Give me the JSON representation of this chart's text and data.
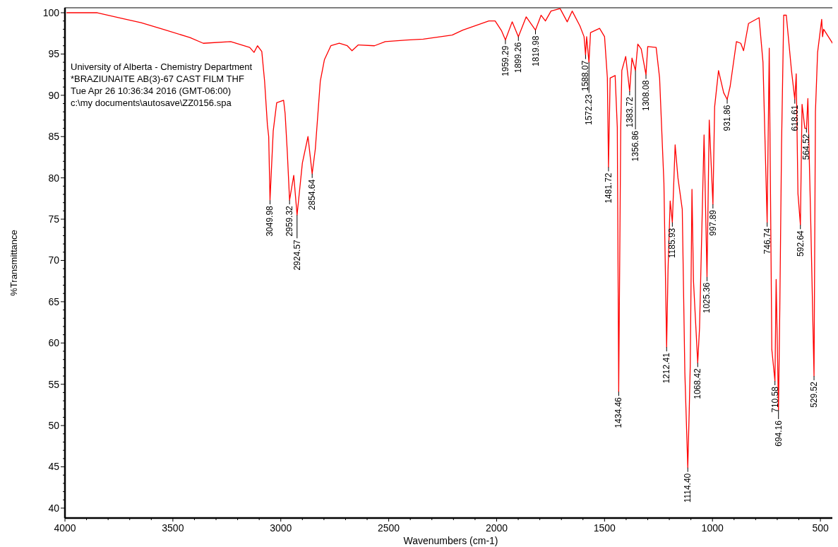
{
  "chart_data": {
    "type": "line",
    "xlabel": "Wavenumbers (cm-1)",
    "ylabel": "%Transmittance",
    "xlim": [
      4000,
      425
    ],
    "ylim": [
      38.8,
      100.6
    ],
    "xticks": [
      4000,
      {
        "value": 3900,
        "label": null
      },
      {
        "value": 3800,
        "label": null
      },
      {
        "value": 3700,
        "label": null
      },
      {
        "value": 3600,
        "label": null
      },
      3500,
      {
        "value": 3400,
        "label": null
      },
      {
        "value": 3300,
        "label": null
      },
      {
        "value": 3200,
        "label": null
      },
      {
        "value": 3100,
        "label": null
      },
      3000,
      {
        "value": 2900,
        "label": null
      },
      {
        "value": 2800,
        "label": null
      },
      {
        "value": 2700,
        "label": null
      },
      {
        "value": 2600,
        "label": null
      },
      2500,
      {
        "value": 2400,
        "label": null
      },
      {
        "value": 2300,
        "label": null
      },
      {
        "value": 2200,
        "label": null
      },
      {
        "value": 2100,
        "label": null
      },
      2000,
      {
        "value": 1900,
        "label": null
      },
      {
        "value": 1800,
        "label": null
      },
      {
        "value": 1700,
        "label": null
      },
      {
        "value": 1600,
        "label": null
      },
      1500,
      {
        "value": 1400,
        "label": null
      },
      {
        "value": 1300,
        "label": null
      },
      {
        "value": 1200,
        "label": null
      },
      {
        "value": 1100,
        "label": null
      },
      1000,
      {
        "value": 900,
        "label": null
      },
      {
        "value": 800,
        "label": null
      },
      {
        "value": 700,
        "label": null
      },
      {
        "value": 600,
        "label": null
      },
      500
    ],
    "yticks": [
      40,
      {
        "value": 41,
        "label": null
      },
      {
        "value": 42,
        "label": null
      },
      {
        "value": 43,
        "label": null
      },
      {
        "value": 44,
        "label": null
      },
      45,
      {
        "value": 46,
        "label": null
      },
      {
        "value": 47,
        "label": null
      },
      {
        "value": 48,
        "label": null
      },
      {
        "value": 49,
        "label": null
      },
      50,
      {
        "value": 51,
        "label": null
      },
      {
        "value": 52,
        "label": null
      },
      {
        "value": 53,
        "label": null
      },
      {
        "value": 54,
        "label": null
      },
      55,
      {
        "value": 56,
        "label": null
      },
      {
        "value": 57,
        "label": null
      },
      {
        "value": 58,
        "label": null
      },
      {
        "value": 59,
        "label": null
      },
      60,
      {
        "value": 61,
        "label": null
      },
      {
        "value": 62,
        "label": null
      },
      {
        "value": 63,
        "label": null
      },
      {
        "value": 64,
        "label": null
      },
      65,
      {
        "value": 66,
        "label": null
      },
      {
        "value": 67,
        "label": null
      },
      {
        "value": 68,
        "label": null
      },
      {
        "value": 69,
        "label": null
      },
      70,
      {
        "value": 71,
        "label": null
      },
      {
        "value": 72,
        "label": null
      },
      {
        "value": 73,
        "label": null
      },
      {
        "value": 74,
        "label": null
      },
      75,
      {
        "value": 76,
        "label": null
      },
      {
        "value": 77,
        "label": null
      },
      {
        "value": 78,
        "label": null
      },
      {
        "value": 79,
        "label": null
      },
      80,
      {
        "value": 81,
        "label": null
      },
      {
        "value": 82,
        "label": null
      },
      {
        "value": 83,
        "label": null
      },
      {
        "value": 84,
        "label": null
      },
      85,
      {
        "value": 86,
        "label": null
      },
      {
        "value": 87,
        "label": null
      },
      {
        "value": 88,
        "label": null
      },
      {
        "value": 89,
        "label": null
      },
      90,
      {
        "value": 91,
        "label": null
      },
      {
        "value": 92,
        "label": null
      },
      {
        "value": 93,
        "label": null
      },
      {
        "value": 94,
        "label": null
      },
      95,
      {
        "value": 96,
        "label": null
      },
      {
        "value": 97,
        "label": null
      },
      {
        "value": 98,
        "label": null
      },
      {
        "value": 99,
        "label": null
      },
      100
    ],
    "grid": false,
    "marker": "none",
    "line_style": "solid",
    "series": [
      {
        "color": "#ff0000",
        "x": [
          3993,
          3850,
          3735,
          3647,
          3546,
          3421,
          3359,
          3232,
          3144,
          3124,
          3108,
          3088,
          3075,
          3062,
          3056,
          3049.98,
          3035,
          3019,
          2987,
          2980,
          2970,
          2959.32,
          2940,
          2924.57,
          2900,
          2874,
          2854.64,
          2840,
          2817,
          2798,
          2768,
          2729,
          2692,
          2670,
          2641,
          2566,
          2516,
          2415,
          2340,
          2206,
          2157,
          2036,
          2007,
          1977,
          1959.29,
          1928,
          1899.26,
          1863,
          1819.98,
          1794,
          1774,
          1748,
          1706,
          1673,
          1650,
          1614,
          1595,
          1588.07,
          1583,
          1572.23,
          1565,
          1523,
          1500,
          1487,
          1481.72,
          1474,
          1451,
          1441,
          1434.46,
          1425,
          1420,
          1402,
          1383.72,
          1373,
          1356.86,
          1346,
          1330,
          1308.08,
          1300,
          1261,
          1245,
          1225,
          1212.41,
          1206,
          1196,
          1185.93,
          1173,
          1160,
          1140,
          1128,
          1114.4,
          1108,
          1103,
          1095,
          1088,
          1068.42,
          1060,
          1039,
          1025.36,
          1015,
          997.89,
          990,
          972,
          948,
          931.86,
          918,
          889,
          869,
          856,
          833,
          784,
          766,
          746.74,
          737,
          725,
          710.58,
          705,
          694.16,
          688,
          680,
          670,
          658,
          634,
          618.61,
          612,
          604,
          592.64,
          585,
          572,
          564.52,
          558,
          545,
          529.52,
          523,
          513,
          494,
          490,
          485,
          441
        ],
        "values": [
          100,
          100,
          99.3,
          98.8,
          98,
          97,
          96.3,
          96.5,
          95.8,
          95.2,
          96,
          95.3,
          91.7,
          86.4,
          85,
          77.3,
          85.7,
          89.1,
          89.4,
          87.8,
          83.2,
          77.3,
          80.3,
          75.5,
          81.8,
          85,
          80.5,
          83.5,
          91.7,
          94.3,
          96,
          96.3,
          96,
          95.4,
          96.1,
          96,
          96.5,
          96.7,
          96.8,
          97.3,
          97.9,
          99,
          99,
          97.8,
          96.7,
          98.9,
          97.1,
          99.5,
          97.9,
          99.7,
          99,
          100.2,
          100.5,
          98.9,
          100.2,
          98.4,
          97.1,
          94.9,
          97.1,
          94,
          97.6,
          98.1,
          97.1,
          92.1,
          81.3,
          92.1,
          92.4,
          86.1,
          54.1,
          86.1,
          93,
          94.7,
          90.5,
          94.5,
          93,
          96.2,
          95.6,
          92.5,
          95.9,
          95.8,
          92.1,
          79.4,
          59.5,
          68.8,
          77.2,
          74.6,
          84,
          80,
          76.2,
          56.4,
          44.9,
          51.5,
          57.3,
          78.6,
          67.5,
          57.6,
          61.8,
          85.2,
          68,
          87,
          76.8,
          88.6,
          93,
          90.3,
          89.5,
          91.1,
          96.5,
          96.3,
          95.4,
          98.7,
          99.4,
          94,
          74.6,
          95.7,
          59.2,
          55.4,
          67.7,
          51.9,
          64.3,
          84,
          99.7,
          99.7,
          93,
          89.5,
          92.6,
          78.1,
          74.3,
          88.9,
          86,
          86,
          89.6,
          75,
          56,
          88,
          95.2,
          99.2,
          97.1,
          98,
          96.2
        ]
      }
    ],
    "annotations": [
      "University of Alberta - Chemistry Department",
      "*BRAZIUNAITE AB(3)-67 CAST FILM THF",
      "Tue Apr 26 10:36:34 2016 (GMT-06:00)",
      "c:\\my documents\\autosave\\ZZ0156.spa",
      {
        "text": "3049.98",
        "x": 3049.98,
        "y": 77.3
      },
      {
        "text": "2959.32",
        "x": 2959.32,
        "y": 77.3
      },
      {
        "text": "2924.57",
        "x": 2924.57,
        "y": 75.5
      },
      {
        "text": "2854.64",
        "x": 2854.64,
        "y": 80.5
      },
      {
        "text": "1959.29",
        "x": 1959.29,
        "y": 96.7
      },
      {
        "text": "1899.26",
        "x": 1899.26,
        "y": 97.1
      },
      {
        "text": "1819.98",
        "x": 1819.98,
        "y": 97.9
      },
      {
        "text": "1588.07",
        "x": 1588.07,
        "y": 94.9
      },
      {
        "text": "1572.23",
        "x": 1572.23,
        "y": 94
      },
      {
        "text": "1481.72",
        "x": 1481.72,
        "y": 81.3
      },
      {
        "text": "1434.46",
        "x": 1434.46,
        "y": 54.1
      },
      {
        "text": "1383.72",
        "x": 1383.72,
        "y": 90.5
      },
      {
        "text": "1356.86",
        "x": 1356.86,
        "y": 93
      },
      {
        "text": "1308.08",
        "x": 1308.08,
        "y": 92.5
      },
      {
        "text": "1212.41",
        "x": 1212.41,
        "y": 59.5
      },
      {
        "text": "1185.93",
        "x": 1185.93,
        "y": 74.6
      },
      {
        "text": "1114.40",
        "x": 1114.4,
        "y": 44.9
      },
      {
        "text": "1068.42",
        "x": 1068.42,
        "y": 57.6
      },
      {
        "text": "1025.36",
        "x": 1025.36,
        "y": 68
      },
      {
        "text": "997.89",
        "x": 997.89,
        "y": 76.8
      },
      {
        "text": "931.86",
        "x": 931.86,
        "y": 89.5
      },
      {
        "text": "746.74",
        "x": 746.74,
        "y": 74.6
      },
      {
        "text": "710.58",
        "x": 710.58,
        "y": 55.4
      },
      {
        "text": "694.16",
        "x": 694.16,
        "y": 51.9
      },
      {
        "text": "618.61",
        "x": 618.61,
        "y": 89.5
      },
      {
        "text": "592.64",
        "x": 592.64,
        "y": 74.3
      },
      {
        "text": "564.52",
        "x": 564.52,
        "y": 86
      },
      {
        "text": "529.52",
        "x": 529.52,
        "y": 56
      }
    ]
  }
}
